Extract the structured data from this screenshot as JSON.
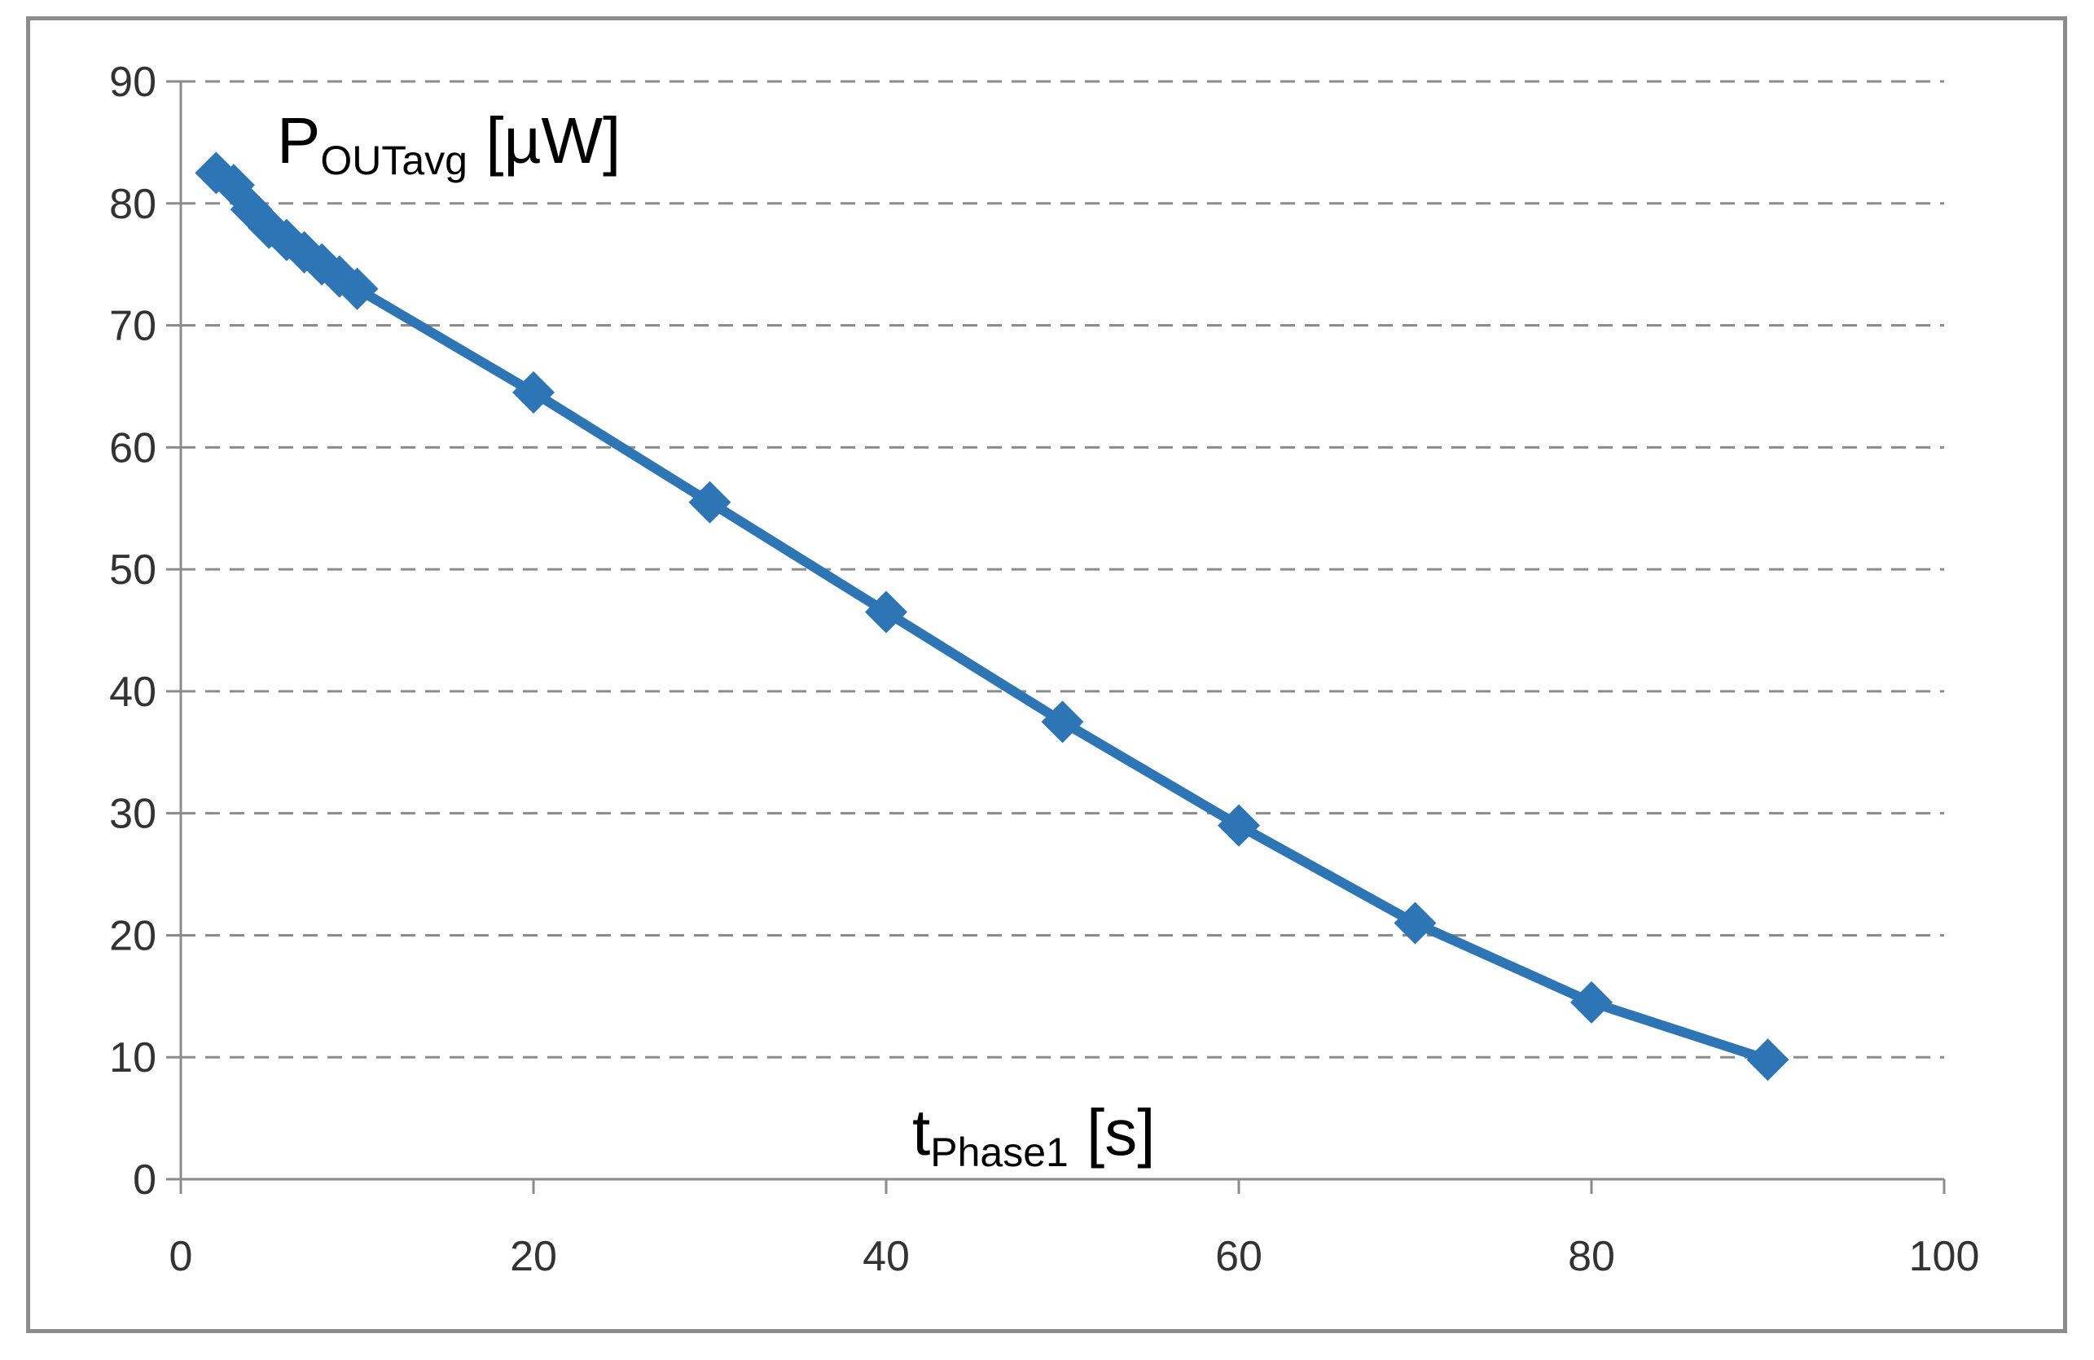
{
  "chart_data": {
    "type": "line",
    "xlim": [
      0,
      100
    ],
    "ylim": [
      0,
      90
    ],
    "x_ticks": [
      "0",
      "20",
      "40",
      "60",
      "80",
      "100"
    ],
    "y_ticks": [
      "0",
      "10",
      "20",
      "30",
      "40",
      "50",
      "60",
      "70",
      "80",
      "90"
    ],
    "ylabel": {
      "main": "P",
      "sub": "OUTavg",
      "unit": " [µW]"
    },
    "xlabel": {
      "main": "t",
      "sub": "Phase1",
      "unit": " [s]"
    },
    "grid": "horizontal-dashed",
    "legend": "none",
    "color": "#2e75b6",
    "marker": "diamond",
    "series": [
      {
        "x": [
          2,
          3,
          4,
          5,
          6,
          7,
          8,
          9,
          10,
          20,
          30,
          40,
          50,
          60,
          70,
          80,
          90
        ],
        "y": [
          82.5,
          81.5,
          79.5,
          78,
          77,
          76,
          75,
          74,
          73,
          64.5,
          55.5,
          46.5,
          37.5,
          29,
          21,
          14.5,
          9.8
        ]
      }
    ]
  }
}
